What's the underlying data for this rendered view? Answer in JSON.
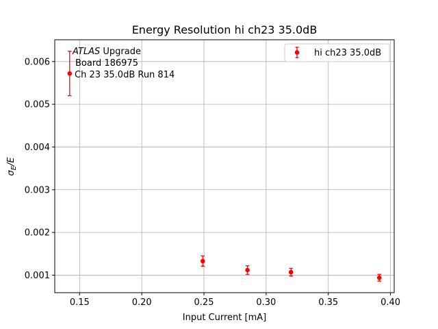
{
  "chart_data": {
    "type": "scatter",
    "title": "Energy Resolution hi ch23 35.0dB",
    "xlabel": "Input Current [mA]",
    "ylabel_main": "σ",
    "ylabel_sub": "E",
    "ylabel_tail": "/E",
    "xlim": [
      0.13,
      0.403
    ],
    "ylim": [
      0.00059,
      0.00651
    ],
    "xticks": [
      0.15,
      0.2,
      0.25,
      0.3,
      0.35,
      0.4
    ],
    "xtick_labels": [
      "0.15",
      "0.20",
      "0.25",
      "0.30",
      "0.35",
      "0.40"
    ],
    "yticks": [
      0.001,
      0.002,
      0.003,
      0.004,
      0.005,
      0.006
    ],
    "ytick_labels": [
      "0.001",
      "0.002",
      "0.003",
      "0.004",
      "0.005",
      "0.006"
    ],
    "grid": true,
    "legend_position": "top-right",
    "series": [
      {
        "name": "hi ch23 35.0dB",
        "color": "#ff0000",
        "x": [
          0.142,
          0.249,
          0.285,
          0.32,
          0.391
        ],
        "y": [
          0.00572,
          0.00133,
          0.00112,
          0.00107,
          0.00094
        ],
        "yerr": [
          0.00052,
          0.00012,
          0.0001,
          9e-05,
          8e-05
        ]
      }
    ],
    "annotations": {
      "line1_italic": "ATLAS",
      "line1_rest": " Upgrade",
      "line2": "Board 186975",
      "line3": "Ch 23 35.0dB  Run 814"
    }
  }
}
